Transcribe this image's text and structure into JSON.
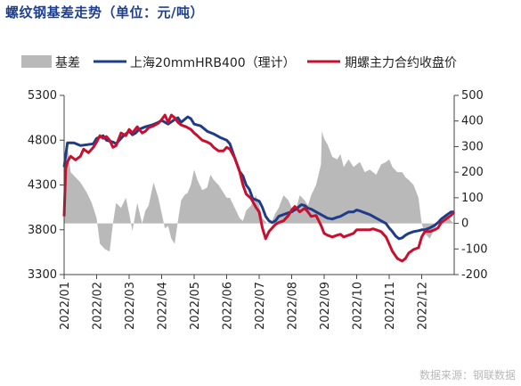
{
  "title": "螺纹钢基差走势（单位：元/吨）",
  "source": "数据来源：钢联数据",
  "chart_data": {
    "type": "line",
    "title": "螺纹钢基差走势（单位：元/吨）",
    "x_range": [
      "2022-01",
      "2022-12"
    ],
    "x_ticks": [
      "2022/01",
      "2022/02",
      "2022/03",
      "2022/04",
      "2022/05",
      "2022/06",
      "2022/07",
      "2022/08",
      "2022/09",
      "2022/10",
      "2022/11",
      "2022/12"
    ],
    "y_left": {
      "range": [
        3300,
        5300
      ],
      "ticks": [
        3300,
        3800,
        4300,
        4800,
        5300
      ]
    },
    "y_right": {
      "range": [
        -200,
        500
      ],
      "ticks": [
        -200,
        -100,
        0,
        100,
        200,
        300,
        400,
        500
      ]
    },
    "legend_position": "top",
    "grid": false,
    "series": [
      {
        "name": "基差",
        "type": "area",
        "axis": "right",
        "color": "#b9b9b9",
        "points": [
          [
            0.0,
            0
          ],
          [
            0.1,
            300
          ],
          [
            0.2,
            200
          ],
          [
            0.35,
            180
          ],
          [
            0.5,
            160
          ],
          [
            0.7,
            120
          ],
          [
            0.85,
            80
          ],
          [
            1.0,
            20
          ],
          [
            1.1,
            -80
          ],
          [
            1.25,
            -100
          ],
          [
            1.4,
            -110
          ],
          [
            1.5,
            0
          ],
          [
            1.6,
            80
          ],
          [
            1.75,
            60
          ],
          [
            1.9,
            100
          ],
          [
            2.0,
            40
          ],
          [
            2.1,
            -30
          ],
          [
            2.25,
            80
          ],
          [
            2.4,
            0
          ],
          [
            2.5,
            50
          ],
          [
            2.6,
            70
          ],
          [
            2.75,
            160
          ],
          [
            2.9,
            100
          ],
          [
            3.0,
            40
          ],
          [
            3.1,
            -20
          ],
          [
            3.2,
            -10
          ],
          [
            3.3,
            -60
          ],
          [
            3.4,
            -80
          ],
          [
            3.5,
            10
          ],
          [
            3.6,
            90
          ],
          [
            3.7,
            110
          ],
          [
            3.8,
            120
          ],
          [
            3.9,
            150
          ],
          [
            4.0,
            210
          ],
          [
            4.1,
            170
          ],
          [
            4.25,
            130
          ],
          [
            4.4,
            140
          ],
          [
            4.5,
            190
          ],
          [
            4.6,
            170
          ],
          [
            4.75,
            150
          ],
          [
            4.9,
            120
          ],
          [
            5.0,
            100
          ],
          [
            5.1,
            100
          ],
          [
            5.25,
            60
          ],
          [
            5.4,
            20
          ],
          [
            5.5,
            10
          ],
          [
            5.6,
            50
          ],
          [
            5.75,
            70
          ],
          [
            5.9,
            110
          ],
          [
            6.0,
            70
          ],
          [
            6.1,
            20
          ],
          [
            6.25,
            0
          ],
          [
            6.4,
            10
          ],
          [
            6.5,
            40
          ],
          [
            6.6,
            60
          ],
          [
            6.75,
            110
          ],
          [
            6.9,
            90
          ],
          [
            7.0,
            60
          ],
          [
            7.1,
            40
          ],
          [
            7.25,
            110
          ],
          [
            7.4,
            90
          ],
          [
            7.5,
            70
          ],
          [
            7.6,
            110
          ],
          [
            7.75,
            150
          ],
          [
            7.9,
            230
          ],
          [
            7.93,
            360
          ],
          [
            8.0,
            330
          ],
          [
            8.1,
            310
          ],
          [
            8.25,
            260
          ],
          [
            8.4,
            250
          ],
          [
            8.5,
            270
          ],
          [
            8.6,
            220
          ],
          [
            8.75,
            250
          ],
          [
            8.9,
            220
          ],
          [
            9.0,
            230
          ],
          [
            9.1,
            240
          ],
          [
            9.25,
            200
          ],
          [
            9.4,
            210
          ],
          [
            9.5,
            200
          ],
          [
            9.6,
            190
          ],
          [
            9.75,
            230
          ],
          [
            9.9,
            240
          ],
          [
            10.0,
            250
          ],
          [
            10.1,
            220
          ],
          [
            10.25,
            200
          ],
          [
            10.4,
            200
          ],
          [
            10.5,
            180
          ],
          [
            10.6,
            170
          ],
          [
            10.75,
            150
          ],
          [
            10.9,
            100
          ],
          [
            11.0,
            0
          ],
          [
            11.1,
            -40
          ],
          [
            11.25,
            -60
          ],
          [
            11.4,
            -20
          ],
          [
            11.5,
            0
          ],
          [
            11.6,
            20
          ],
          [
            11.75,
            40
          ],
          [
            11.9,
            10
          ],
          [
            12.0,
            0
          ]
        ]
      },
      {
        "name": "上海20mmHRB400（理计）",
        "type": "line",
        "axis": "left",
        "color": "#1f3c88",
        "points": [
          [
            0.0,
            4500
          ],
          [
            0.1,
            4770
          ],
          [
            0.3,
            4770
          ],
          [
            0.5,
            4740
          ],
          [
            0.7,
            4750
          ],
          [
            0.9,
            4760
          ],
          [
            1.0,
            4820
          ],
          [
            1.2,
            4850
          ],
          [
            1.3,
            4800
          ],
          [
            1.5,
            4780
          ],
          [
            1.6,
            4760
          ],
          [
            1.8,
            4840
          ],
          [
            2.0,
            4900
          ],
          [
            2.1,
            4860
          ],
          [
            2.2,
            4880
          ],
          [
            2.3,
            4920
          ],
          [
            2.5,
            4950
          ],
          [
            2.7,
            4970
          ],
          [
            2.9,
            5000
          ],
          [
            3.0,
            5020
          ],
          [
            3.2,
            4980
          ],
          [
            3.4,
            5030
          ],
          [
            3.5,
            5050
          ],
          [
            3.6,
            5000
          ],
          [
            3.7,
            5030
          ],
          [
            3.8,
            5060
          ],
          [
            3.9,
            5040
          ],
          [
            4.0,
            4980
          ],
          [
            4.2,
            4960
          ],
          [
            4.4,
            4900
          ],
          [
            4.6,
            4870
          ],
          [
            4.8,
            4830
          ],
          [
            5.0,
            4800
          ],
          [
            5.1,
            4760
          ],
          [
            5.25,
            4600
          ],
          [
            5.4,
            4450
          ],
          [
            5.5,
            4400
          ],
          [
            5.6,
            4300
          ],
          [
            5.7,
            4250
          ],
          [
            5.8,
            4150
          ],
          [
            6.0,
            4120
          ],
          [
            6.1,
            4050
          ],
          [
            6.2,
            3950
          ],
          [
            6.3,
            3900
          ],
          [
            6.4,
            3880
          ],
          [
            6.5,
            3900
          ],
          [
            6.6,
            3950
          ],
          [
            6.75,
            3970
          ],
          [
            6.9,
            3990
          ],
          [
            7.0,
            4000
          ],
          [
            7.1,
            4020
          ],
          [
            7.2,
            4050
          ],
          [
            7.3,
            4080
          ],
          [
            7.4,
            4070
          ],
          [
            7.5,
            4040
          ],
          [
            7.6,
            4030
          ],
          [
            7.75,
            4000
          ],
          [
            7.9,
            3970
          ],
          [
            8.0,
            3950
          ],
          [
            8.1,
            3930
          ],
          [
            8.25,
            3920
          ],
          [
            8.4,
            3940
          ],
          [
            8.5,
            3950
          ],
          [
            8.6,
            3970
          ],
          [
            8.75,
            4000
          ],
          [
            8.9,
            4000
          ],
          [
            9.0,
            4020
          ],
          [
            9.1,
            4010
          ],
          [
            9.25,
            3990
          ],
          [
            9.4,
            3970
          ],
          [
            9.5,
            3950
          ],
          [
            9.6,
            3930
          ],
          [
            9.75,
            3900
          ],
          [
            9.9,
            3870
          ],
          [
            10.0,
            3820
          ],
          [
            10.1,
            3780
          ],
          [
            10.2,
            3730
          ],
          [
            10.3,
            3700
          ],
          [
            10.4,
            3710
          ],
          [
            10.5,
            3740
          ],
          [
            10.6,
            3760
          ],
          [
            10.75,
            3780
          ],
          [
            10.9,
            3790
          ],
          [
            11.0,
            3800
          ],
          [
            11.1,
            3800
          ],
          [
            11.25,
            3820
          ],
          [
            11.4,
            3850
          ],
          [
            11.5,
            3880
          ],
          [
            11.6,
            3920
          ],
          [
            11.75,
            3960
          ],
          [
            11.9,
            4000
          ],
          [
            12.0,
            4000
          ]
        ]
      },
      {
        "name": "期螺主力合约收盘价",
        "type": "line",
        "axis": "left",
        "color": "#c8102e",
        "points": [
          [
            0.0,
            3950
          ],
          [
            0.05,
            4480
          ],
          [
            0.1,
            4560
          ],
          [
            0.2,
            4620
          ],
          [
            0.35,
            4580
          ],
          [
            0.5,
            4620
          ],
          [
            0.6,
            4700
          ],
          [
            0.75,
            4660
          ],
          [
            0.9,
            4720
          ],
          [
            1.0,
            4780
          ],
          [
            1.1,
            4850
          ],
          [
            1.2,
            4820
          ],
          [
            1.3,
            4840
          ],
          [
            1.4,
            4800
          ],
          [
            1.5,
            4720
          ],
          [
            1.6,
            4740
          ],
          [
            1.75,
            4880
          ],
          [
            1.9,
            4850
          ],
          [
            2.0,
            4920
          ],
          [
            2.1,
            4880
          ],
          [
            2.25,
            4950
          ],
          [
            2.4,
            4880
          ],
          [
            2.5,
            4900
          ],
          [
            2.6,
            4940
          ],
          [
            2.75,
            4960
          ],
          [
            2.9,
            4990
          ],
          [
            3.0,
            5030
          ],
          [
            3.1,
            5080
          ],
          [
            3.2,
            5000
          ],
          [
            3.3,
            5080
          ],
          [
            3.4,
            5050
          ],
          [
            3.5,
            5000
          ],
          [
            3.6,
            4970
          ],
          [
            3.75,
            4950
          ],
          [
            3.9,
            4920
          ],
          [
            4.0,
            4880
          ],
          [
            4.1,
            4850
          ],
          [
            4.25,
            4800
          ],
          [
            4.4,
            4780
          ],
          [
            4.5,
            4760
          ],
          [
            4.6,
            4720
          ],
          [
            4.75,
            4680
          ],
          [
            4.9,
            4680
          ],
          [
            5.0,
            4720
          ],
          [
            5.1,
            4700
          ],
          [
            5.25,
            4600
          ],
          [
            5.4,
            4450
          ],
          [
            5.5,
            4300
          ],
          [
            5.6,
            4200
          ],
          [
            5.75,
            4150
          ],
          [
            5.9,
            4050
          ],
          [
            6.0,
            4000
          ],
          [
            6.1,
            3820
          ],
          [
            6.2,
            3700
          ],
          [
            6.3,
            3780
          ],
          [
            6.4,
            3820
          ],
          [
            6.5,
            3860
          ],
          [
            6.6,
            3880
          ],
          [
            6.75,
            3900
          ],
          [
            6.9,
            3960
          ],
          [
            7.0,
            4020
          ],
          [
            7.1,
            4060
          ],
          [
            7.25,
            4000
          ],
          [
            7.4,
            4040
          ],
          [
            7.5,
            4000
          ],
          [
            7.6,
            3950
          ],
          [
            7.75,
            3960
          ],
          [
            7.9,
            3850
          ],
          [
            8.0,
            3760
          ],
          [
            8.1,
            3740
          ],
          [
            8.25,
            3720
          ],
          [
            8.4,
            3740
          ],
          [
            8.5,
            3750
          ],
          [
            8.6,
            3720
          ],
          [
            8.75,
            3740
          ],
          [
            8.9,
            3760
          ],
          [
            9.0,
            3800
          ],
          [
            9.1,
            3800
          ],
          [
            9.25,
            3800
          ],
          [
            9.4,
            3800
          ],
          [
            9.5,
            3810
          ],
          [
            9.6,
            3800
          ],
          [
            9.75,
            3780
          ],
          [
            9.9,
            3720
          ],
          [
            10.0,
            3640
          ],
          [
            10.1,
            3560
          ],
          [
            10.25,
            3480
          ],
          [
            10.4,
            3450
          ],
          [
            10.5,
            3480
          ],
          [
            10.6,
            3540
          ],
          [
            10.75,
            3580
          ],
          [
            10.9,
            3600
          ],
          [
            11.0,
            3720
          ],
          [
            11.1,
            3780
          ],
          [
            11.25,
            3780
          ],
          [
            11.4,
            3800
          ],
          [
            11.5,
            3820
          ],
          [
            11.6,
            3880
          ],
          [
            11.75,
            3920
          ],
          [
            11.9,
            3960
          ],
          [
            12.0,
            4000
          ]
        ]
      }
    ]
  },
  "legend": {
    "basis": "基差",
    "shanghai": "上海20mmHRB400（理计）",
    "futures": "期螺主力合约收盘价"
  },
  "colors": {
    "basis": "#b9b9b9",
    "shanghai": "#1f3c88",
    "futures": "#c8102e",
    "title": "#1f3f8f"
  }
}
